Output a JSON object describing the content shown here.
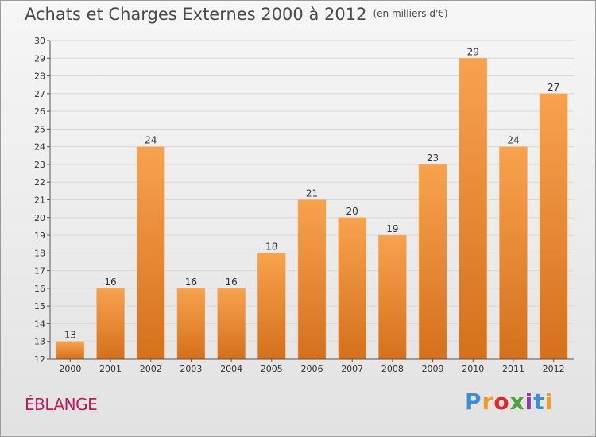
{
  "title": "Achats et Charges Externes 2000 à 2012",
  "subtitle": "(en milliers d'€)",
  "location": "ÉBLANGE",
  "brand": {
    "text": "Proxiti",
    "letter_colors": [
      "#3b8fd6",
      "#f29a1e",
      "#e0262f",
      "#4aa53b",
      "#8a3fa6",
      "#3b8fd6",
      "#f29a1e"
    ]
  },
  "colors": {
    "bar_top": "#f8a24e",
    "bar_bottom": "#d5701c",
    "grid": "#d8d8d8",
    "axis": "#555555"
  },
  "chart_data": {
    "type": "bar",
    "categories": [
      "2000",
      "2001",
      "2002",
      "2003",
      "2004",
      "2005",
      "2006",
      "2007",
      "2008",
      "2009",
      "2010",
      "2011",
      "2012"
    ],
    "values": [
      13,
      16,
      24,
      16,
      16,
      18,
      21,
      20,
      19,
      23,
      29,
      24,
      27
    ],
    "ylim": [
      12,
      30
    ],
    "yticks": [
      12,
      13,
      14,
      15,
      16,
      17,
      18,
      19,
      20,
      21,
      22,
      23,
      24,
      25,
      26,
      27,
      28,
      29,
      30
    ],
    "grid": true,
    "legend": "none"
  }
}
